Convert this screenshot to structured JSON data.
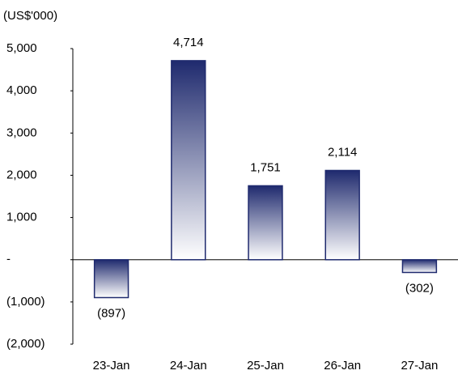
{
  "chart_data": {
    "type": "bar",
    "y_label": "(US$'000)",
    "categories": [
      "23-Jan",
      "24-Jan",
      "25-Jan",
      "26-Jan",
      "27-Jan"
    ],
    "values": [
      -897,
      4714,
      1751,
      2114,
      -302
    ],
    "value_labels": [
      "(897)",
      "4,714",
      "1,751",
      "2,114",
      "(302)"
    ],
    "color": "#1f2a6e",
    "ylim": [
      -2000,
      5000
    ],
    "yticks": [
      {
        "value": -2000,
        "label": "(2,000)"
      },
      {
        "value": -1000,
        "label": "(1,000)"
      },
      {
        "value": 0,
        "label": "-"
      },
      {
        "value": 1000,
        "label": "1,000"
      },
      {
        "value": 2000,
        "label": "2,000"
      },
      {
        "value": 3000,
        "label": "3,000"
      },
      {
        "value": 4000,
        "label": "4,000"
      },
      {
        "value": 5000,
        "label": "5,000"
      }
    ]
  }
}
